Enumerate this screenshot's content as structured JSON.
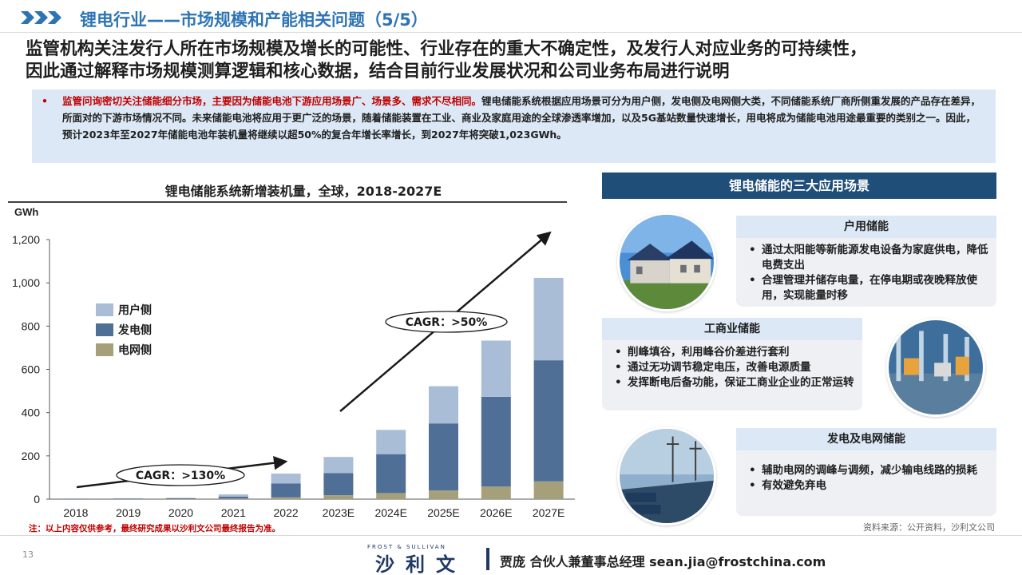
{
  "header": {
    "title": "锂电行业——市场规模和产能相关问题（5/5）"
  },
  "headline": {
    "line1": "监管机构关注发行人所在市场规模及增长的可能性、行业存在的重大不确定性，及发行人对应业务的可持续性，",
    "line2": "因此通过解释市场规模测算逻辑和核心数据，结合目前行业发展状况和公司业务布局进行说明"
  },
  "notice": {
    "bullet": "•",
    "red_text": "监管问询密切关注储能细分市场，主要因为储能电池下游应用场景广、场景多、需求不尽相同。",
    "text": "锂电储能系统根据应用场景可分为用户侧，发电侧及电网侧大类，不同储能系统厂商所侧重发展的产品存在差异，所面对的下游市场情况不同。未来储能电池将应用于更广泛的场景，随着储能装置在工业、商业及家庭用途的全球渗透率增加，以及5G基站数量快速增长，用电将成为储能电池用途最重要的类别之一。因此，预计2023年至2027年储能电池年装机量将继续以超50%的复合年增长率增长，到2027年将突破1,023GWh。"
  },
  "chart_data": {
    "type": "bar",
    "stacked": true,
    "title": "锂电储能系统新增装机量，全球，2018-2027E",
    "ylabel": "GWh",
    "xlabel": "",
    "ylim": [
      0,
      1200
    ],
    "yticks": [
      "0",
      "200",
      "400",
      "600",
      "800",
      "1,000",
      "1,200"
    ],
    "categories": [
      "2018",
      "2019",
      "2020",
      "2021",
      "2022",
      "2023E",
      "2024E",
      "2025E",
      "2026E",
      "2027E"
    ],
    "series": [
      {
        "name": "电网侧",
        "color": "#a6a07a",
        "values": [
          0.5,
          0.8,
          1.2,
          2.5,
          8,
          18,
          28,
          40,
          58,
          82
        ]
      },
      {
        "name": "发电侧",
        "color": "#4f6f97",
        "values": [
          1.5,
          2.2,
          3.3,
          9.5,
          64,
          102,
          180,
          310,
          415,
          560
        ]
      },
      {
        "name": "用户侧",
        "color": "#a9bdd6",
        "values": [
          0.5,
          0.8,
          1.5,
          10,
          46,
          75,
          112,
          172,
          260,
          381
        ]
      }
    ],
    "legend_position": "top-left",
    "annotations": [
      {
        "text": "CAGR：>130%",
        "from": "2018",
        "to": "2022"
      },
      {
        "text": "CAGR：>50%",
        "from": "2023E",
        "to": "2027E"
      }
    ],
    "grid": false
  },
  "note_left": "注：以上内容仅供参考，最终研究成果以沙利文公司最终报告为准。",
  "note_right": "资料来源：公开资料，沙利文公司",
  "footer": {
    "page": "13",
    "logo_small": "FROST & SULLIVAN",
    "logo_big": "沙利文",
    "contact": "贾庞 合伙人兼董事总经理 sean.jia@frostchina.com"
  },
  "right_panel": {
    "header": "锂电储能的三大应用场景",
    "scenes": [
      {
        "title": "户用储能",
        "icon": "solar-house-photo",
        "items": [
          "通过太阳能等新能源发电设备为家庭供电，降低电费支出",
          "合理管理并储存电量，在停电期或夜晚释放使用，实现能量时移"
        ]
      },
      {
        "title": "工商业储能",
        "icon": "factory-photo",
        "items": [
          "削峰填谷，利用峰谷价差进行套利",
          "通过无功调节稳定电压，改善电源质量",
          "发挥断电后备功能，保证工商业企业的正常运转"
        ]
      },
      {
        "title": "发电及电网储能",
        "icon": "power-grid-photo",
        "items": [
          "辅助电网的调峰与调频，减少输电线路的损耗",
          "有效避免弃电"
        ]
      }
    ]
  }
}
